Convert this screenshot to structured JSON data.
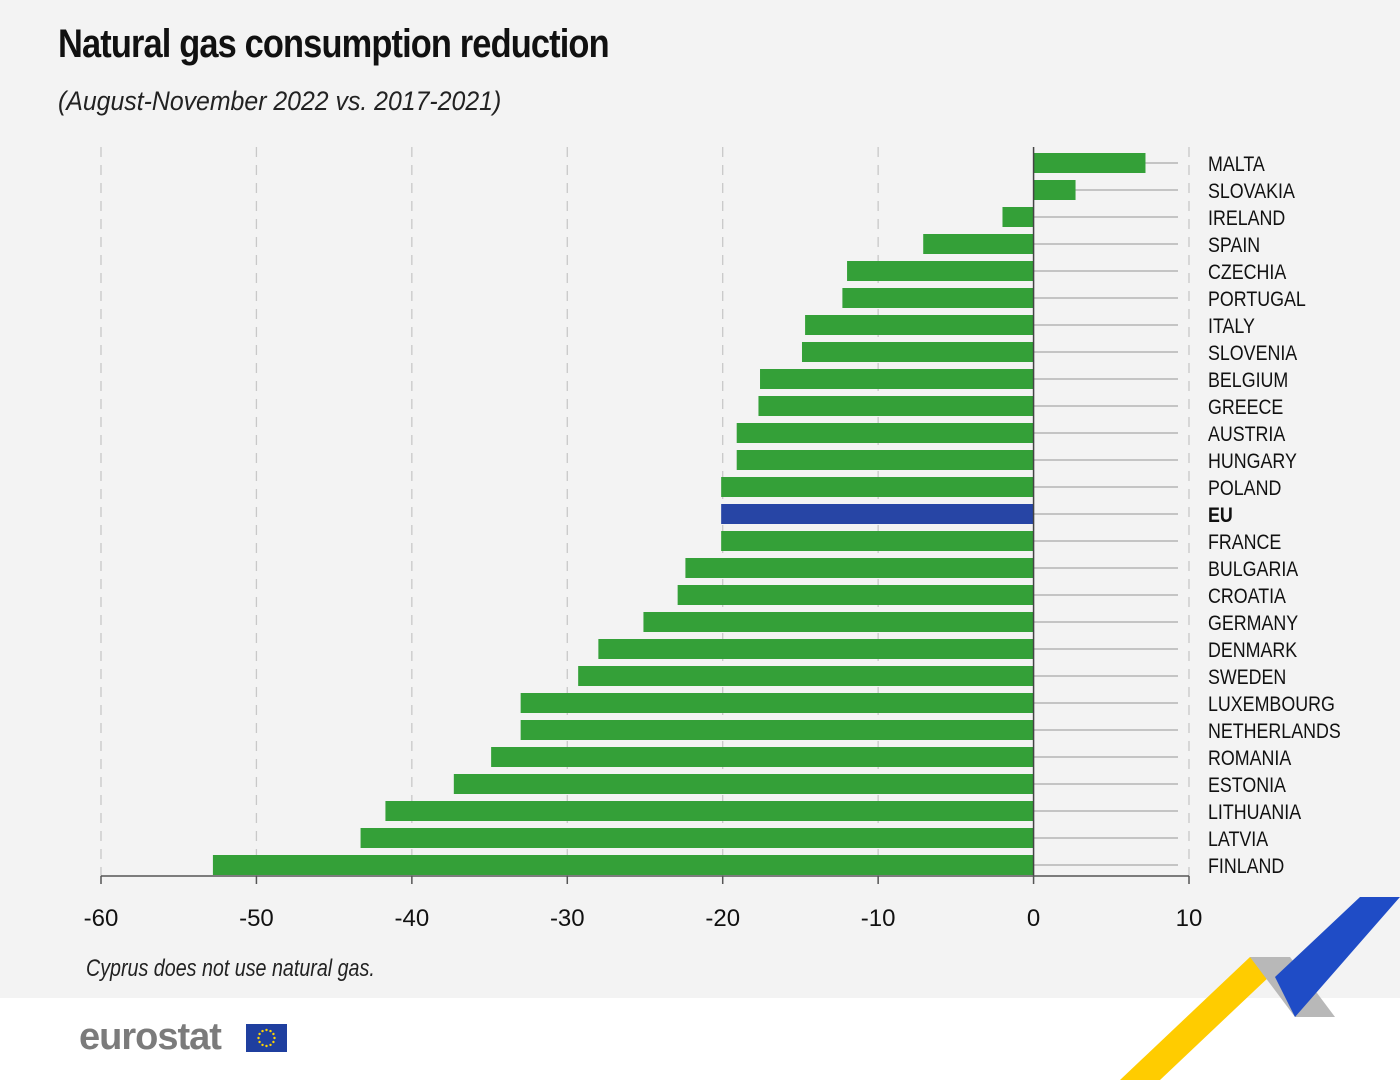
{
  "chart_data": {
    "type": "bar",
    "orientation": "horizontal",
    "title": "Natural gas consumption reduction",
    "subtitle": "(August-November 2022 vs. 2017-2021)",
    "categories": [
      "MALTA",
      "SLOVAKIA",
      "IRELAND",
      "SPAIN",
      "CZECHIA",
      "PORTUGAL",
      "ITALY",
      "SLOVENIA",
      "BELGIUM",
      "GREECE",
      "AUSTRIA",
      "HUNGARY",
      "POLAND",
      "EU",
      "FRANCE",
      "BULGARIA",
      "CROATIA",
      "GERMANY",
      "DENMARK",
      "SWEDEN",
      "LUXEMBOURG",
      "NETHERLANDS",
      "ROMANIA",
      "ESTONIA",
      "LITHUANIA",
      "LATVIA",
      "FINLAND"
    ],
    "values": [
      7.2,
      2.7,
      -2.0,
      -7.1,
      -12.0,
      -12.3,
      -14.7,
      -14.9,
      -17.6,
      -17.7,
      -19.1,
      -19.1,
      -20.1,
      -20.1,
      -20.1,
      -22.4,
      -22.9,
      -25.1,
      -28.0,
      -29.3,
      -33.0,
      -33.0,
      -34.9,
      -37.3,
      -41.7,
      -43.3,
      -52.8
    ],
    "highlight": "EU",
    "xlim": [
      -60,
      10
    ],
    "xticks": [
      "-60",
      "-50",
      "-40",
      "-30",
      "-20",
      "-10",
      "0",
      "10"
    ],
    "grid": true,
    "colors": {
      "bar": "#34a038",
      "highlight": "#2745a5"
    },
    "note": "Cyprus does not use natural gas."
  },
  "footer": {
    "logo": "eurostat"
  }
}
